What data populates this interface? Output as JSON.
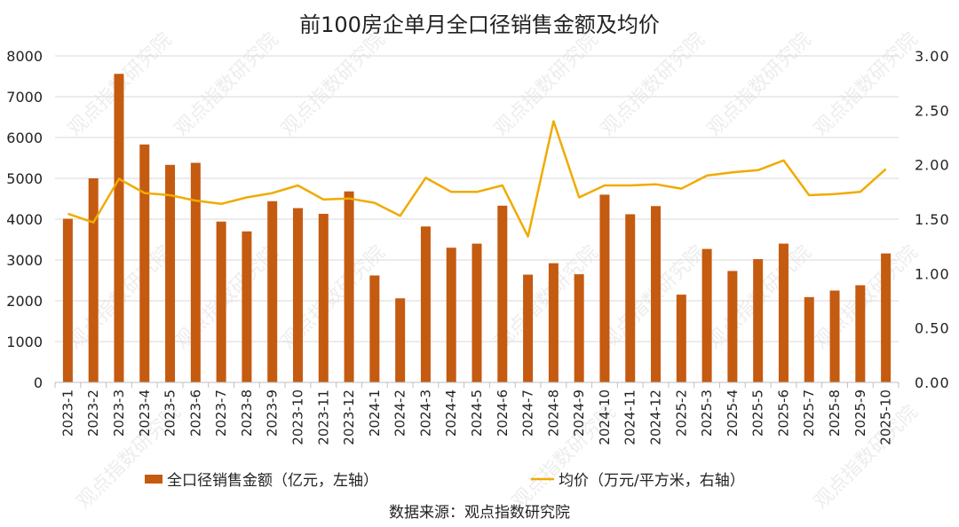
{
  "title": "前100房企单月全口径销售金额及均价",
  "source": "数据来源：观点指数研究院",
  "watermark": "观点指数研究院",
  "colors": {
    "bar": "#c55a11",
    "line": "#f0ab00",
    "grid": "#d9d9d9",
    "axis": "#bfbfbf"
  },
  "chart_data": {
    "type": "bar",
    "title": "前100房企单月全口径销售金额及均价",
    "categories": [
      "2023-1",
      "2023-2",
      "2023-3",
      "2023-4",
      "2023-5",
      "2023-6",
      "2023-7",
      "2023-8",
      "2023-9",
      "2023-10",
      "2023-11",
      "2023-12",
      "2024-1",
      "2024-2",
      "2024-3",
      "2024-4",
      "2024-5",
      "2024-6",
      "2024-7",
      "2024-8",
      "2024-9",
      "2024-10",
      "2024-11",
      "2024-12",
      "2025-2",
      "2025-3",
      "2025-4",
      "2025-5",
      "2025-6",
      "2025-7",
      "2025-8",
      "2025-9",
      "2025-10"
    ],
    "series": [
      {
        "name": "全口径销售金额（亿元，左轴）",
        "type": "bar",
        "axis": "left",
        "values": [
          4010,
          5000,
          7560,
          5830,
          5330,
          5380,
          3940,
          3700,
          4440,
          4270,
          4130,
          4680,
          2620,
          2060,
          3820,
          3300,
          3400,
          4330,
          2640,
          2920,
          2650,
          4600,
          4120,
          4320,
          2150,
          3270,
          2730,
          3020,
          3400,
          2090,
          2250,
          2380,
          3160
        ]
      },
      {
        "name": "均价（万元/平方米，右轴）",
        "type": "line",
        "axis": "right",
        "values": [
          1.55,
          1.47,
          1.87,
          1.74,
          1.72,
          1.67,
          1.64,
          1.7,
          1.74,
          1.81,
          1.68,
          1.69,
          1.65,
          1.53,
          1.88,
          1.75,
          1.75,
          1.81,
          1.34,
          2.4,
          1.7,
          1.81,
          1.81,
          1.82,
          1.78,
          1.9,
          1.93,
          1.95,
          2.04,
          1.72,
          1.73,
          1.75,
          1.96
        ]
      }
    ],
    "yleft": {
      "lim": [
        0,
        8000
      ],
      "ticks": [
        "0",
        "1000",
        "2000",
        "3000",
        "4000",
        "5000",
        "6000",
        "7000",
        "8000"
      ]
    },
    "yright": {
      "lim": [
        0,
        3.0
      ],
      "ticks": [
        "0.00",
        "0.50",
        "1.00",
        "1.50",
        "2.00",
        "2.50",
        "3.00"
      ]
    },
    "grid": true,
    "legend": "bottom"
  }
}
